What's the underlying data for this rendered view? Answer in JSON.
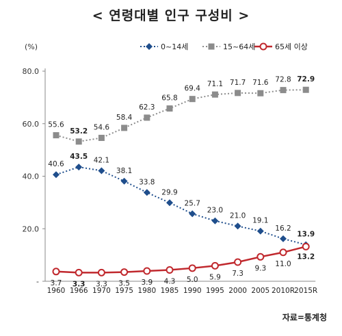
{
  "title": "< 연령대별 인구 구성비 >",
  "source": "자료=통계청",
  "chart_data": {
    "type": "line",
    "yunit": "(%)",
    "ylim": [
      0,
      80
    ],
    "yticks": [
      "-",
      "20.0",
      "40.0",
      "60.0",
      "80.0"
    ],
    "ytick_values": [
      0,
      20,
      40,
      60,
      80
    ],
    "x": [
      "1960",
      "1966",
      "1970",
      "1975",
      "1980",
      "1985",
      "1990",
      "1995",
      "2000",
      "2005",
      "2010R",
      "2015R"
    ],
    "legend_position": "top-right",
    "grid": false,
    "series": [
      {
        "name": "0~14세",
        "color": "#1f4e8c",
        "style": "dotted",
        "marker": "diamond",
        "values": [
          40.6,
          43.5,
          42.1,
          38.1,
          33.8,
          29.9,
          25.7,
          23.0,
          21.0,
          19.1,
          16.2,
          13.9
        ],
        "labels": [
          "40.6",
          "43.5",
          "42.1",
          "38.1",
          "33.8",
          "29.9",
          "25.7",
          "23.0",
          "21.0",
          "19.1",
          "16.2",
          "13.9"
        ],
        "bold_labels": [
          1,
          11
        ]
      },
      {
        "name": "15~64세",
        "color": "#8c8c8c",
        "style": "dotted",
        "marker": "square",
        "values": [
          55.6,
          53.2,
          54.6,
          58.4,
          62.3,
          65.8,
          69.4,
          71.1,
          71.7,
          71.6,
          72.8,
          72.9
        ],
        "labels": [
          "55.6",
          "53.2",
          "54.6",
          "58.4",
          "62.3",
          "65.8",
          "69.4",
          "71.1",
          "71.7",
          "71.6",
          "72.8",
          "72.9"
        ],
        "bold_labels": [
          1,
          11
        ]
      },
      {
        "name": "65세 이상",
        "color": "#c0282d",
        "style": "solid",
        "marker": "circle",
        "values": [
          3.7,
          3.3,
          3.3,
          3.5,
          3.9,
          4.3,
          5.0,
          5.9,
          7.3,
          9.3,
          11.0,
          13.2
        ],
        "labels": [
          "3.7",
          "3.3",
          "3.3",
          "3.5",
          "3.9",
          "4.3",
          "5.0",
          "5.9",
          "7.3",
          "9.3",
          "11.0",
          "13.2"
        ],
        "bold_labels": [
          1,
          11
        ]
      }
    ]
  }
}
